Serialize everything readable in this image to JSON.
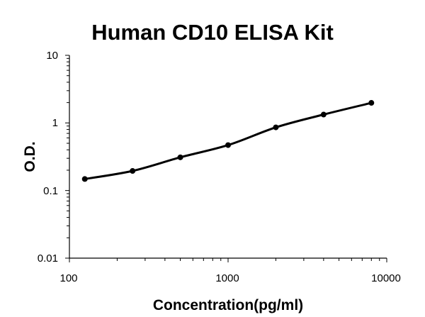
{
  "chart_data": {
    "type": "scatter",
    "title": "Human CD10 ELISA Kit",
    "xlabel": "Concentration(pg/ml)",
    "ylabel": "O.D.",
    "xscale": "log",
    "yscale": "log",
    "xlim": [
      100,
      10000
    ],
    "ylim": [
      0.01,
      10
    ],
    "x_ticks": [
      "100",
      "1000",
      "10000"
    ],
    "y_ticks": [
      "0.01",
      "0.1",
      "1",
      "10"
    ],
    "grid": false,
    "legend": "none",
    "series": [
      {
        "x": [
          125,
          250,
          500,
          1000,
          2000,
          4000,
          8000
        ],
        "y": [
          0.148,
          0.195,
          0.31,
          0.47,
          0.86,
          1.33,
          1.98
        ],
        "line": "smooth fitted curve",
        "markers": "filled circles"
      }
    ],
    "colors": {
      "line": "#000000",
      "marker": "#000000"
    }
  }
}
